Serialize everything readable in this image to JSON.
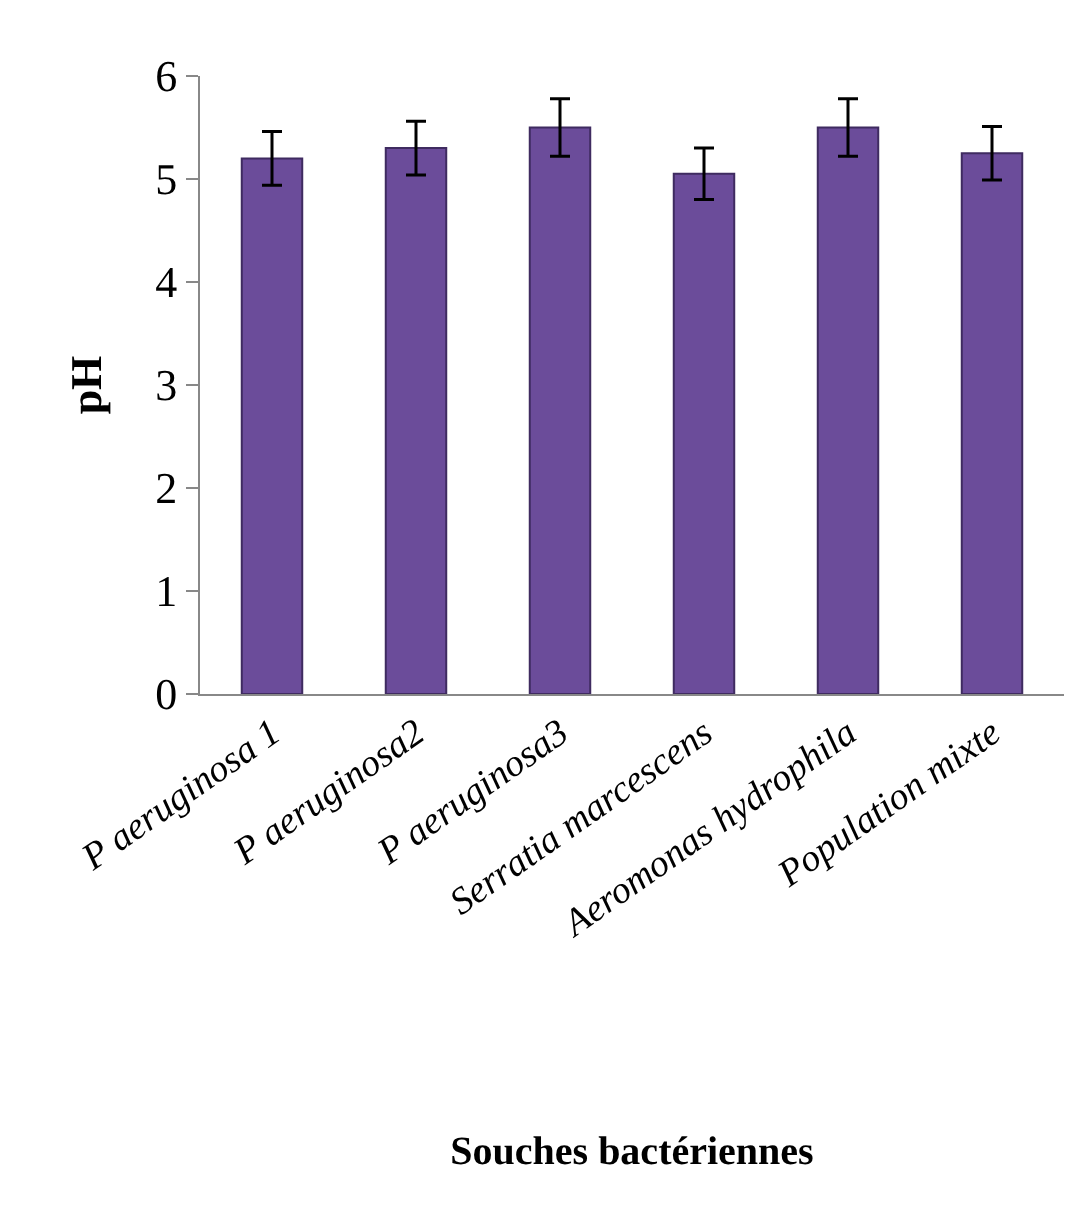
{
  "chart_data": {
    "type": "bar",
    "xlabel": "Souches bactériennes",
    "ylabel": "pH",
    "categories": [
      "P aeruginosa 1",
      "P aeruginosa2",
      "P aeruginosa3",
      "Serratia marcescens",
      "Aeromonas hydrophila",
      "Population mixte"
    ],
    "values": [
      5.2,
      5.3,
      5.5,
      5.05,
      5.5,
      5.25
    ],
    "errors": [
      0.26,
      0.26,
      0.28,
      0.25,
      0.28,
      0.26
    ],
    "color": "#6b4c9a",
    "ylim": [
      0,
      6
    ],
    "yticks": [
      0,
      1,
      2,
      3,
      4,
      5,
      6
    ],
    "grid": false,
    "legend": false
  }
}
